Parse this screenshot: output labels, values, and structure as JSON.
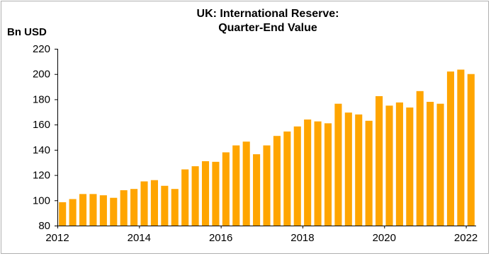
{
  "chart_data": {
    "type": "bar",
    "title_lines": [
      "UK: International Reserve:",
      "Quarter-End Value"
    ],
    "ylabel": "Bn USD",
    "ylim": [
      80,
      220
    ],
    "y_ticks": [
      "80",
      "100",
      "120",
      "140",
      "160",
      "180",
      "200",
      "220"
    ],
    "x_tick_labels": [
      "2012",
      "2014",
      "2016",
      "2018",
      "2020",
      "2022"
    ],
    "grid": false,
    "bar_color": "#FFA500",
    "series": [
      {
        "x": [
          "2012-Q1",
          "2012-Q2",
          "2012-Q3",
          "2012-Q4",
          "2013-Q1",
          "2013-Q2",
          "2013-Q3",
          "2013-Q4",
          "2014-Q1",
          "2014-Q2",
          "2014-Q3",
          "2014-Q4",
          "2015-Q1",
          "2015-Q2",
          "2015-Q3",
          "2015-Q4",
          "2016-Q1",
          "2016-Q2",
          "2016-Q3",
          "2016-Q4",
          "2017-Q1",
          "2017-Q2",
          "2017-Q3",
          "2017-Q4",
          "2018-Q1",
          "2018-Q2",
          "2018-Q3",
          "2018-Q4",
          "2019-Q1",
          "2019-Q2",
          "2019-Q3",
          "2019-Q4",
          "2020-Q1",
          "2020-Q2",
          "2020-Q3",
          "2020-Q4",
          "2021-Q1",
          "2021-Q2",
          "2021-Q3",
          "2021-Q4",
          "2022-Q1"
        ],
        "values": [
          98.5,
          101,
          105,
          105,
          104,
          102,
          108,
          109,
          115,
          116,
          111.5,
          109,
          124.5,
          127,
          131,
          130.5,
          138,
          143.5,
          146.5,
          136.5,
          143.5,
          151,
          154.5,
          158.5,
          164,
          162.5,
          161,
          176.5,
          169.5,
          168,
          163,
          182.5,
          175,
          177.5,
          173.5,
          186.5,
          178,
          176.5,
          202,
          203.5,
          200
        ]
      }
    ]
  }
}
